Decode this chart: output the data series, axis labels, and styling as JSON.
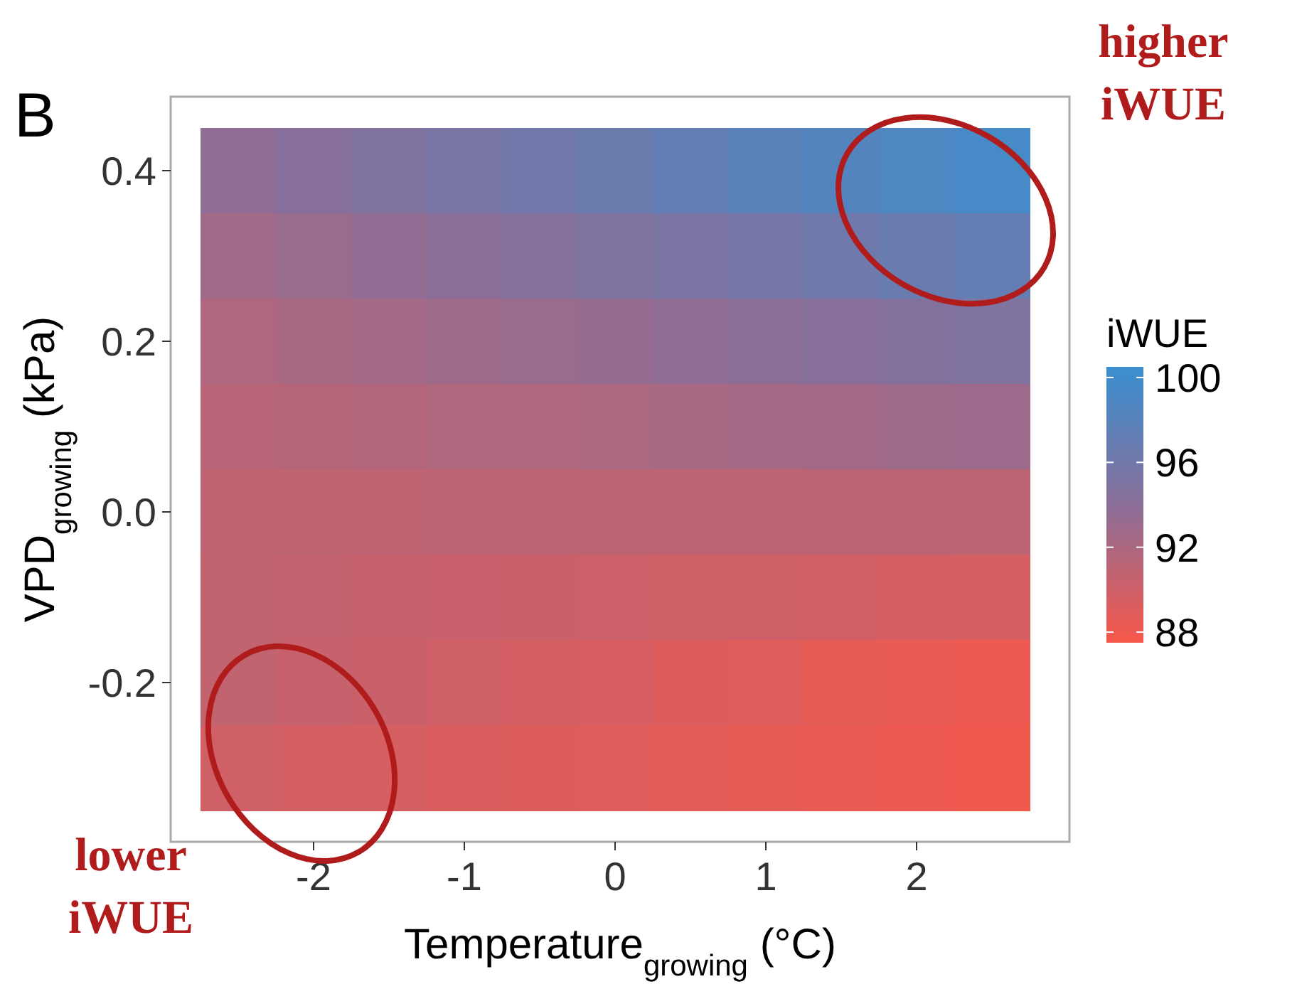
{
  "chart_data": {
    "type": "heatmap",
    "title": "B",
    "xlabel": "Temperature$_{growing}$ (°C)",
    "ylabel": "VPD$_{growing}$ (kPa)",
    "legend_title": "iWUE",
    "categories": [
      null,
      "-2",
      null,
      "-1",
      null,
      "0",
      null,
      "1",
      null,
      "2",
      null
    ],
    "y_categories": [
      "0.4",
      null,
      "0.2",
      null,
      "0.0",
      null,
      "-0.2",
      null
    ],
    "cells": [
      [
        93.7,
        94.3,
        94.8,
        95.4,
        96.0,
        96.6,
        97.2,
        97.8,
        98.4,
        98.9,
        99.5
      ],
      [
        92.7,
        93.1,
        93.6,
        94.0,
        94.5,
        94.9,
        95.3,
        95.8,
        96.2,
        96.7,
        97.1
      ],
      [
        91.9,
        92.2,
        92.5,
        92.8,
        93.1,
        93.4,
        93.7,
        94.0,
        94.3,
        94.6,
        94.9
      ],
      [
        91.3,
        91.4,
        91.6,
        91.8,
        91.9,
        92.1,
        92.3,
        92.4,
        92.6,
        92.8,
        92.9
      ],
      [
        90.9,
        90.9,
        90.9,
        91.0,
        91.0,
        91.0,
        91.0,
        91.0,
        91.1,
        91.1,
        91.1
      ],
      [
        90.7,
        90.6,
        90.4,
        90.3,
        90.2,
        90.1,
        90.0,
        89.9,
        89.8,
        89.6,
        89.5
      ],
      [
        90.7,
        90.4,
        90.2,
        89.9,
        89.7,
        89.4,
        89.1,
        88.9,
        88.6,
        88.4,
        88.1
      ],
      [
        89.9,
        89.7,
        89.5,
        89.3,
        89.1,
        88.9,
        88.7,
        88.5,
        88.3,
        88.1,
        87.9
      ]
    ],
    "clim": [
      87.5,
      100.5
    ],
    "cticks": [
      88,
      92,
      96,
      100
    ],
    "colors": [
      "#f8584a",
      "#8a6e98",
      "#3a8fd0"
    ],
    "annotations": [
      "higher iWUE",
      "lower iWUE"
    ]
  }
}
